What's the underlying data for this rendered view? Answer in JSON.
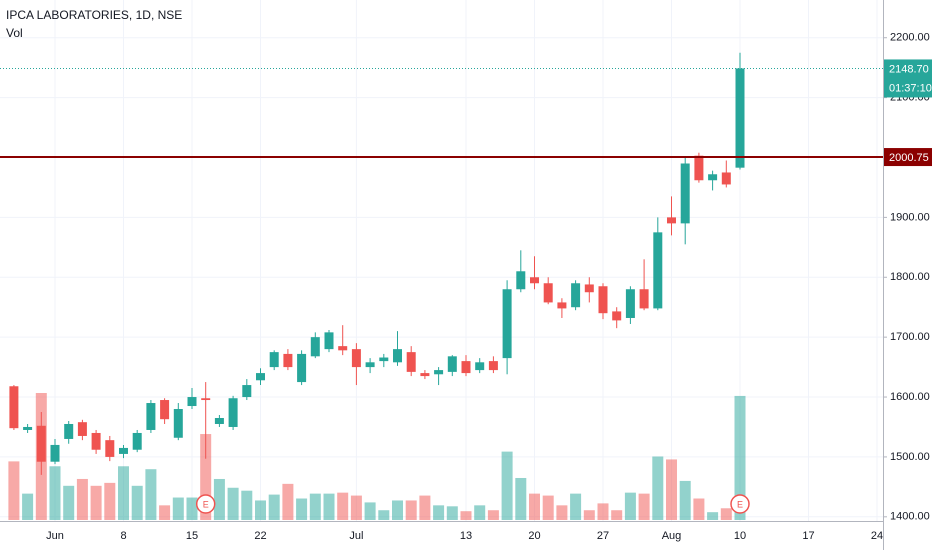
{
  "chart_data": {
    "type": "candlestick",
    "title": "IPCA LABORATORIES, 1D, NSE",
    "subtitle": "Vol",
    "categories": [
      null,
      null,
      null,
      "Jun",
      null,
      null,
      null,
      null,
      "8",
      null,
      null,
      null,
      null,
      "15",
      null,
      null,
      null,
      null,
      "22",
      null,
      null,
      null,
      null,
      null,
      null,
      "Jul",
      null,
      null,
      null,
      null,
      null,
      null,
      null,
      "13",
      null,
      null,
      null,
      null,
      "20",
      null,
      null,
      null,
      null,
      "27",
      null,
      null,
      null,
      null,
      "Aug",
      null,
      null,
      null,
      null,
      "10",
      null,
      null,
      null,
      null,
      "17",
      null,
      null,
      null,
      null,
      "24"
    ],
    "open": [
      1618,
      1545,
      1552,
      1492,
      1530,
      1558,
      1540,
      1528,
      1505,
      1512,
      1545,
      1595,
      1532,
      1585,
      1598,
      1555,
      1550,
      1600,
      1628,
      1650,
      1672,
      1625,
      1668,
      1680,
      1685,
      1680,
      1650,
      1660,
      1658,
      1675,
      1640,
      1638,
      1642,
      1660,
      1645,
      1660,
      1665,
      1780,
      1800,
      1790,
      1758,
      1750,
      1788,
      1785,
      1743,
      1732,
      1780,
      1748,
      1900,
      1890,
      2003,
      1962,
      1975,
      1983,
      null,
      null,
      null,
      null,
      null,
      null,
      null,
      null,
      null,
      null
    ],
    "high": [
      1620,
      1555,
      1575,
      1530,
      1560,
      1562,
      1545,
      1535,
      1520,
      1545,
      1595,
      1598,
      1590,
      1615,
      1625,
      1570,
      1602,
      1630,
      1648,
      1678,
      1680,
      1678,
      1708,
      1712,
      1720,
      1690,
      1665,
      1672,
      1710,
      1685,
      1645,
      1650,
      1670,
      1670,
      1665,
      1668,
      1795,
      1845,
      1835,
      1800,
      1765,
      1795,
      1800,
      1790,
      1750,
      1785,
      1830,
      1900,
      1935,
      2000,
      2008,
      1978,
      1995,
      2175,
      null,
      null,
      null,
      null,
      null,
      null,
      null,
      null,
      null,
      null
    ],
    "low": [
      1545,
      1540,
      1470,
      1488,
      1522,
      1528,
      1505,
      1493,
      1498,
      1508,
      1540,
      1555,
      1528,
      1580,
      1497,
      1550,
      1545,
      1595,
      1620,
      1645,
      1645,
      1620,
      1665,
      1675,
      1670,
      1620,
      1640,
      1650,
      1652,
      1635,
      1630,
      1620,
      1635,
      1635,
      1640,
      1640,
      1638,
      1775,
      1780,
      1755,
      1732,
      1745,
      1758,
      1730,
      1715,
      1722,
      1745,
      1745,
      1870,
      1855,
      1958,
      1945,
      1950,
      1980,
      null,
      null,
      null,
      null,
      null,
      null,
      null,
      null,
      null,
      null
    ],
    "close": [
      1548,
      1550,
      1492,
      1520,
      1555,
      1535,
      1512,
      1500,
      1515,
      1540,
      1590,
      1563,
      1580,
      1600,
      1595,
      1565,
      1598,
      1620,
      1640,
      1675,
      1650,
      1672,
      1700,
      1708,
      1678,
      1650,
      1658,
      1666,
      1680,
      1642,
      1635,
      1645,
      1668,
      1640,
      1658,
      1645,
      1780,
      1810,
      1790,
      1758,
      1748,
      1790,
      1775,
      1740,
      1728,
      1780,
      1748,
      1875,
      1890,
      1990,
      1962,
      1972,
      1955,
      2148.7,
      null,
      null,
      null,
      null,
      null,
      null,
      null,
      null,
      null,
      null
    ],
    "volume": [
      60,
      27,
      130,
      55,
      35,
      42,
      35,
      38,
      55,
      35,
      52,
      15,
      23,
      23,
      88,
      42,
      33,
      30,
      20,
      26,
      37,
      22,
      27,
      27,
      28,
      25,
      18,
      10,
      20,
      20,
      25,
      15,
      14,
      9,
      15,
      10,
      70,
      43,
      27,
      25,
      15,
      27,
      10,
      17,
      10,
      28,
      27,
      65,
      62,
      40,
      22,
      8,
      12,
      127,
      null,
      null,
      null,
      null,
      null,
      null,
      null,
      null,
      null,
      null
    ],
    "earnings": [
      null,
      null,
      null,
      null,
      null,
      null,
      null,
      null,
      null,
      null,
      null,
      null,
      null,
      null,
      "E",
      null,
      null,
      null,
      null,
      null,
      null,
      null,
      null,
      null,
      null,
      null,
      null,
      null,
      null,
      null,
      null,
      null,
      null,
      null,
      null,
      null,
      null,
      null,
      null,
      null,
      null,
      null,
      null,
      null,
      null,
      null,
      null,
      null,
      null,
      null,
      null,
      null,
      null,
      "E",
      null,
      null,
      null,
      null,
      null,
      null,
      null,
      null,
      null,
      null
    ],
    "up_color": "#26a69a",
    "down_color": "#ef5350",
    "ylim": [
      1393,
      2263
    ],
    "yticks": [
      {
        "value": 1400,
        "label": "1400.00"
      },
      {
        "value": 1500,
        "label": "1500.00"
      },
      {
        "value": 1600,
        "label": "1600.00"
      },
      {
        "value": 1700,
        "label": "1700.00"
      },
      {
        "value": 1800,
        "label": "1800.00"
      },
      {
        "value": 1900,
        "label": "1900.00"
      },
      {
        "value": 2000,
        "label": "2000.00"
      },
      {
        "value": 2100,
        "label": "2100.00"
      },
      {
        "value": 2200,
        "label": "2200.00"
      }
    ],
    "last_price": {
      "value": 2148.7,
      "label": "2148.70"
    },
    "countdown": "01:37:10",
    "hline": {
      "value": 2000.75,
      "label": "2000.75",
      "color": "#8b0000"
    },
    "grid": true
  }
}
